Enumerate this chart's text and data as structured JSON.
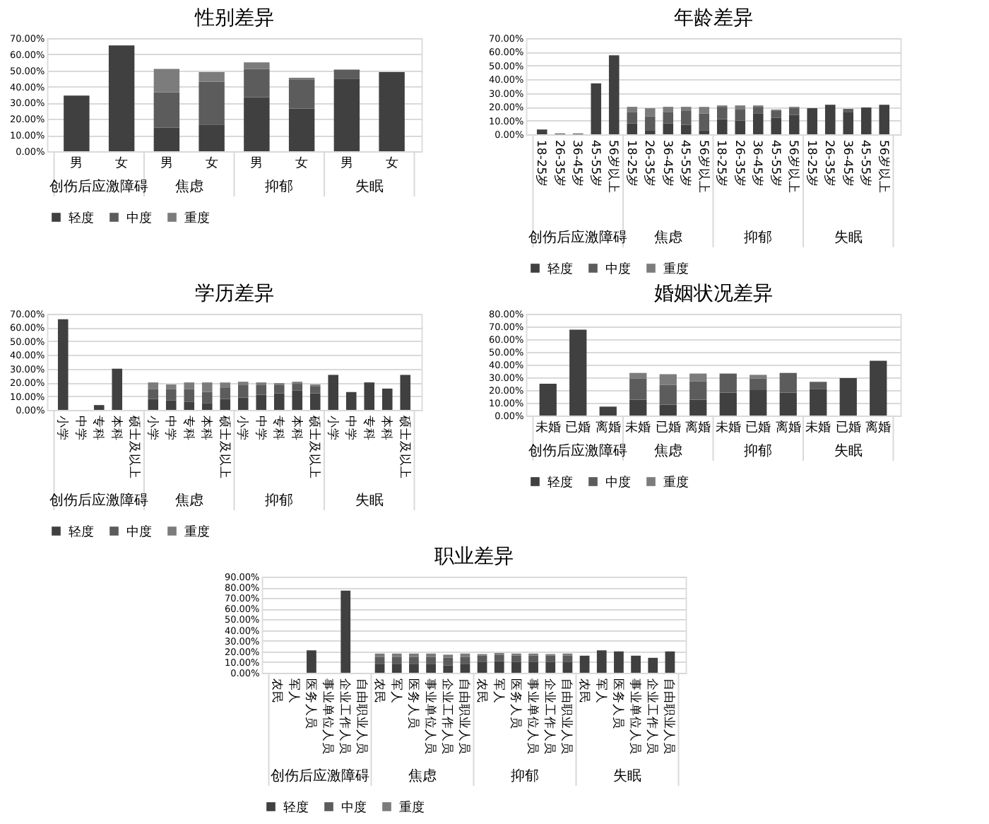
{
  "chart_data": [
    {
      "type": "bar",
      "title": "性别差异",
      "stacked": true,
      "grid": "y",
      "legend": "bottom",
      "categories": [
        "男",
        "女",
        "男",
        "女",
        "男",
        "女",
        "男",
        "女"
      ],
      "annotations": [
        "创伤后应激障碍",
        "焦虑",
        "抑郁",
        "失眠"
      ],
      "ylim": [
        0,
        70
      ],
      "yticks": [
        {
          "value": 0,
          "label": "0.00%"
        },
        {
          "value": 10,
          "label": "10.00%"
        },
        {
          "value": 20,
          "label": "20.00%"
        },
        {
          "value": 30,
          "label": "30.00%"
        },
        {
          "value": 40,
          "label": "40.00%"
        },
        {
          "value": 50,
          "label": "50.00%"
        },
        {
          "value": 60,
          "label": "60.00%"
        },
        {
          "value": 70,
          "label": "70.00%"
        }
      ],
      "series": [
        {
          "name": "轻度",
          "color": "#404040",
          "values": [
            34.5,
            65.5,
            14.5,
            16.5,
            33.5,
            26.5,
            45,
            49
          ]
        },
        {
          "name": "中度",
          "color": "#5c5c5c",
          "values": [
            0,
            0,
            22,
            26.5,
            17.5,
            18,
            5.5,
            0
          ]
        },
        {
          "name": "重度",
          "color": "#7c7c7c",
          "values": [
            0,
            0,
            14.5,
            6,
            4,
            1,
            0,
            0
          ]
        }
      ]
    },
    {
      "type": "bar",
      "title": "年龄差异",
      "stacked": true,
      "grid": "y",
      "legend": "bottom",
      "categories": [
        "18-25岁",
        "26-35岁",
        "36-45岁",
        "45-55岁",
        "56岁以上",
        "18-25岁",
        "26-35岁",
        "36-45岁",
        "45-55岁",
        "56岁以上",
        "18-25岁",
        "26-35岁",
        "36-45岁",
        "45-55岁",
        "56岁以上",
        "18-25岁",
        "26-35岁",
        "36-45岁",
        "45-55岁",
        "56岁以上"
      ],
      "annotations": [
        "创伤后应激障碍",
        "焦虑",
        "抑郁",
        "失眠"
      ],
      "ylim": [
        0,
        70
      ],
      "yticks": [
        {
          "value": 0,
          "label": "0.00%"
        },
        {
          "value": 10,
          "label": "10.00%"
        },
        {
          "value": 20,
          "label": "20.00%"
        },
        {
          "value": 30,
          "label": "30.00%"
        },
        {
          "value": 40,
          "label": "40.00%"
        },
        {
          "value": 50,
          "label": "50.00%"
        },
        {
          "value": 60,
          "label": "60.00%"
        },
        {
          "value": 70,
          "label": "70.00%"
        }
      ],
      "series": [
        {
          "name": "轻度",
          "color": "#404040",
          "values": [
            3.5,
            0.5,
            0.5,
            37,
            57.5,
            8,
            3,
            8,
            7,
            3,
            11,
            10,
            15,
            12,
            14,
            19,
            21.5,
            16,
            19.5,
            21.5
          ]
        },
        {
          "name": "中度",
          "color": "#5c5c5c",
          "values": [
            0,
            0,
            0,
            0,
            0,
            8,
            10,
            8,
            10,
            12,
            9,
            8,
            5,
            5,
            5,
            0,
            0,
            2.5,
            0,
            0
          ]
        },
        {
          "name": "重度",
          "color": "#7c7c7c",
          "values": [
            0,
            0,
            0,
            0,
            0,
            4,
            6,
            4,
            3,
            5,
            1,
            3,
            1,
            1,
            1,
            0,
            0,
            0,
            0,
            0
          ]
        }
      ]
    },
    {
      "type": "bar",
      "title": "学历差异",
      "stacked": true,
      "grid": "y",
      "legend": "bottom",
      "categories": [
        "小学",
        "中学",
        "专科",
        "本科",
        "硕士及以上",
        "小学",
        "中学",
        "专科",
        "本科",
        "硕士及以上",
        "小学",
        "中学",
        "专科",
        "本科",
        "硕士及以上",
        "小学",
        "中学",
        "专科",
        "本科",
        "硕士及以上"
      ],
      "annotations": [
        "创伤后应激障碍",
        "焦虑",
        "抑郁",
        "失眠"
      ],
      "ylim": [
        0,
        70
      ],
      "yticks": [
        {
          "value": 0,
          "label": "0.00%"
        },
        {
          "value": 10,
          "label": "10.00%"
        },
        {
          "value": 20,
          "label": "20.00%"
        },
        {
          "value": 30,
          "label": "30.00%"
        },
        {
          "value": 40,
          "label": "40.00%"
        },
        {
          "value": 50,
          "label": "50.00%"
        },
        {
          "value": 60,
          "label": "60.00%"
        },
        {
          "value": 70,
          "label": "70.00%"
        }
      ],
      "series": [
        {
          "name": "轻度",
          "color": "#404040",
          "values": [
            66,
            0,
            3.5,
            30,
            0,
            8,
            7,
            6,
            5,
            8,
            9,
            11,
            12,
            14,
            12,
            25.5,
            13,
            20,
            15.5,
            25.5
          ]
        },
        {
          "name": "中度",
          "color": "#5c5c5c",
          "values": [
            0,
            0,
            0,
            0,
            0,
            7,
            8,
            9,
            8,
            8,
            9,
            7,
            6,
            5,
            5,
            0,
            0,
            0,
            0,
            0
          ]
        },
        {
          "name": "重度",
          "color": "#7c7c7c",
          "values": [
            0,
            0,
            0,
            0,
            0,
            5,
            3.5,
            5,
            7,
            4,
            2.5,
            2,
            1.5,
            1.5,
            1.5,
            0,
            0,
            0,
            0,
            0
          ]
        }
      ]
    },
    {
      "type": "bar",
      "title": "婚姻状况差异",
      "stacked": true,
      "grid": "y",
      "legend": "bottom",
      "categories": [
        "未婚",
        "已婚",
        "离婚",
        "未婚",
        "已婚",
        "离婚",
        "未婚",
        "已婚",
        "离婚",
        "未婚",
        "已婚",
        "离婚"
      ],
      "annotations": [
        "创伤后应激障碍",
        "焦虑",
        "抑郁",
        "失眠"
      ],
      "ylim": [
        0,
        80
      ],
      "yticks": [
        {
          "value": 0,
          "label": "0.00%"
        },
        {
          "value": 10,
          "label": "10.00%"
        },
        {
          "value": 20,
          "label": "20.00%"
        },
        {
          "value": 30,
          "label": "30.00%"
        },
        {
          "value": 40,
          "label": "40.00%"
        },
        {
          "value": 50,
          "label": "50.00%"
        },
        {
          "value": 60,
          "label": "60.00%"
        },
        {
          "value": 70,
          "label": "70.00%"
        },
        {
          "value": 80,
          "label": "80.00%"
        }
      ],
      "series": [
        {
          "name": "轻度",
          "color": "#404040",
          "values": [
            25,
            67.5,
            7,
            12.5,
            8.5,
            12.5,
            18,
            20,
            18,
            21,
            29.5,
            43
          ]
        },
        {
          "name": "中度",
          "color": "#5c5c5c",
          "values": [
            0,
            0,
            0,
            16.5,
            15.5,
            14.5,
            15,
            9,
            15.5,
            5.5,
            0,
            0
          ]
        },
        {
          "name": "重度",
          "color": "#7c7c7c",
          "values": [
            0,
            0,
            0,
            4.5,
            8.5,
            6,
            0,
            3,
            0,
            0,
            0,
            0
          ]
        }
      ]
    },
    {
      "type": "bar",
      "title": "职业差异",
      "stacked": true,
      "grid": "y",
      "legend": "bottom",
      "categories": [
        "农民",
        "军人",
        "医务人员",
        "事业单位人员",
        "企业工作人员",
        "自由职业人员",
        "农民",
        "军人",
        "医务人员",
        "事业单位人员",
        "企业工作人员",
        "自由职业人员",
        "农民",
        "军人",
        "医务人员",
        "事业单位人员",
        "企业工作人员",
        "自由职业人员",
        "农民",
        "军人",
        "医务人员",
        "事业单位人员",
        "企业工作人员",
        "自由职业人员"
      ],
      "annotations": [
        "创伤后应激障碍",
        "焦虑",
        "抑郁",
        "失眠"
      ],
      "ylim": [
        0,
        90
      ],
      "yticks": [
        {
          "value": 0,
          "label": "0.00%"
        },
        {
          "value": 10,
          "label": "10.00%"
        },
        {
          "value": 20,
          "label": "20.00%"
        },
        {
          "value": 30,
          "label": "30.00%"
        },
        {
          "value": 40,
          "label": "40.00%"
        },
        {
          "value": 50,
          "label": "50.00%"
        },
        {
          "value": 60,
          "label": "60.00%"
        },
        {
          "value": 70,
          "label": "70.00%"
        },
        {
          "value": 80,
          "label": "80.00%"
        },
        {
          "value": 90,
          "label": "90.00%"
        }
      ],
      "series": [
        {
          "name": "轻度",
          "color": "#404040",
          "values": [
            0,
            0,
            21,
            0,
            77,
            0,
            8,
            8,
            8,
            8,
            7,
            8,
            10,
            11,
            10,
            10,
            10,
            10,
            16,
            21,
            20,
            16,
            14,
            20
          ]
        },
        {
          "name": "中度",
          "color": "#5c5c5c",
          "values": [
            0,
            0,
            0,
            0,
            0,
            0,
            7,
            7,
            7,
            7,
            7,
            7,
            6,
            6,
            6,
            6,
            6,
            6,
            0,
            0,
            0,
            0,
            0,
            0
          ]
        },
        {
          "name": "重度",
          "color": "#7c7c7c",
          "values": [
            0,
            0,
            0,
            0,
            0,
            0,
            3,
            3,
            3,
            3,
            3,
            3,
            1.5,
            1.5,
            2,
            2,
            1.5,
            2,
            0,
            0,
            0,
            0,
            0,
            0
          ]
        }
      ]
    }
  ]
}
